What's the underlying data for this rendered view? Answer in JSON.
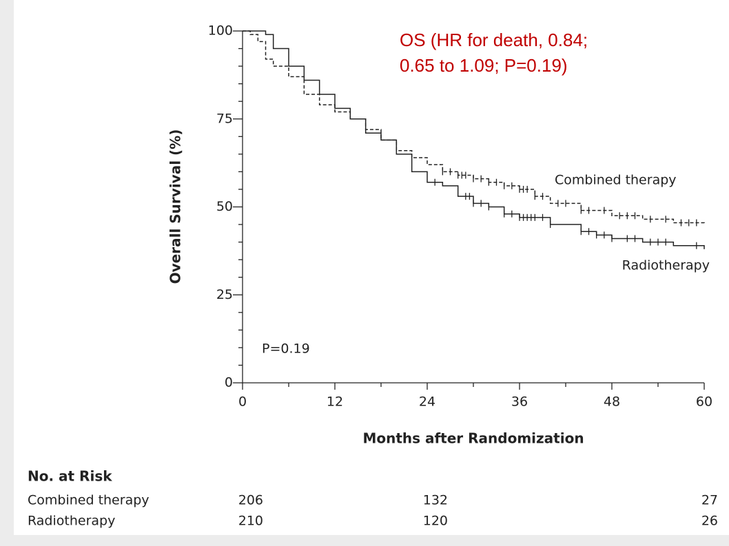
{
  "chart_data": {
    "type": "step",
    "annotation": "OS (HR for death, 0.84; 0.65 to 1.09; P=0.19)",
    "p_label": "P=0.19",
    "x_label": "Months after Randomization",
    "y_label": "Overall Survival (%)",
    "xlim": [
      0,
      60
    ],
    "xticks": [
      0,
      12,
      24,
      36,
      48,
      60
    ],
    "xticks_minor": [
      6,
      18,
      30,
      42,
      54
    ],
    "ylim": [
      0,
      100
    ],
    "yticks": [
      0,
      25,
      50,
      75,
      100
    ],
    "yticks_minor": [
      5,
      10,
      15,
      20,
      30,
      35,
      40,
      45,
      55,
      60,
      65,
      70,
      80,
      85,
      90,
      95
    ],
    "series": [
      {
        "name": "Combined therapy",
        "color": "#222222",
        "style": "dashed",
        "x": [
          0,
          1,
          2,
          3,
          4,
          6,
          8,
          10,
          12,
          14,
          16,
          18,
          20,
          22,
          24,
          26,
          28,
          30,
          32,
          34,
          36,
          38,
          40,
          44,
          48,
          52,
          56,
          60
        ],
        "values": [
          100,
          99,
          97,
          92,
          90,
          87,
          82,
          79,
          77,
          75,
          72,
          69,
          66,
          64,
          62,
          60,
          59,
          58,
          57,
          56,
          55,
          53,
          51,
          49,
          47.5,
          46.5,
          45.5,
          45
        ],
        "censored": [
          26,
          27,
          28,
          28.5,
          29,
          30,
          31,
          32,
          33,
          34,
          35,
          36,
          36.5,
          37,
          38,
          39,
          41,
          42,
          44,
          45,
          47,
          49,
          50,
          51,
          53,
          55,
          57,
          58,
          59
        ]
      },
      {
        "name": "Radiotherapy",
        "color": "#222222",
        "style": "solid",
        "x": [
          0,
          2,
          3,
          4,
          6,
          8,
          10,
          12,
          14,
          16,
          18,
          20,
          22,
          24,
          26,
          28,
          30,
          32,
          34,
          36,
          40,
          44,
          46,
          48,
          52,
          56,
          60
        ],
        "values": [
          100,
          100,
          99,
          95,
          90,
          86,
          82,
          78,
          75,
          71,
          69,
          65,
          60,
          57,
          56,
          53,
          51,
          50,
          48,
          47,
          45,
          43,
          42,
          41,
          40,
          39,
          38
        ],
        "censored": [
          25,
          29,
          29.5,
          30,
          31,
          32,
          34,
          35,
          36,
          36.5,
          37,
          37.5,
          38,
          39,
          40,
          44,
          45,
          46,
          47,
          48,
          50,
          51,
          53,
          54,
          55,
          59
        ]
      }
    ],
    "at_risk": {
      "title": "No. at Risk",
      "times": [
        0,
        24,
        60
      ],
      "rows": [
        {
          "name": "Combined therapy",
          "counts": [
            206,
            132,
            27
          ]
        },
        {
          "name": "Radiotherapy",
          "counts": [
            210,
            120,
            26
          ]
        }
      ]
    }
  }
}
